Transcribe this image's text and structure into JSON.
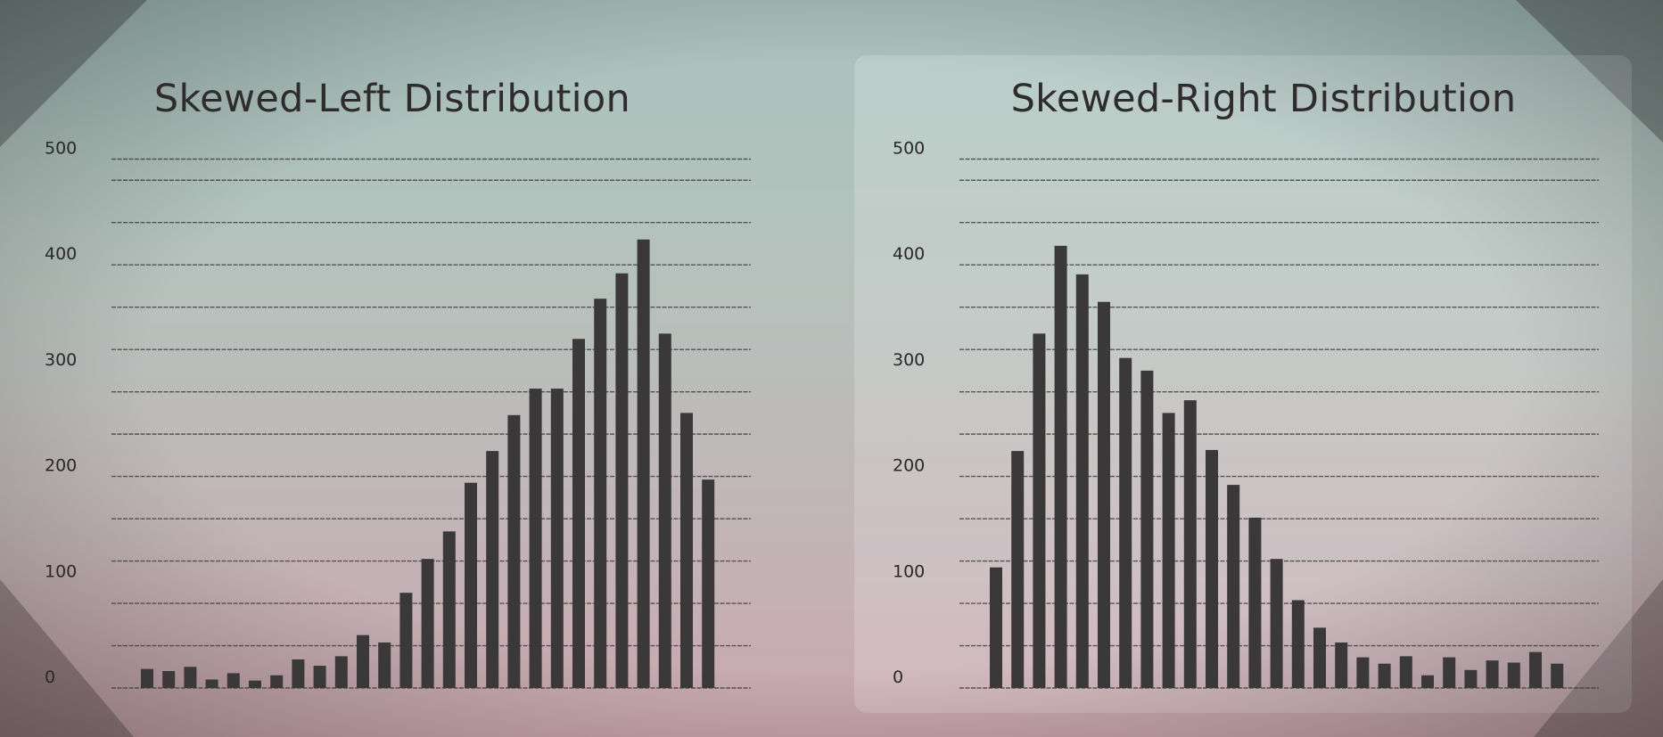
{
  "chart_data": [
    {
      "type": "bar",
      "title": "Skewed-Left Distribution",
      "xlabel": "",
      "ylabel": "",
      "ylim": [
        0,
        510
      ],
      "yticks": [
        0,
        100,
        200,
        300,
        400,
        500
      ],
      "grid": true,
      "values": [
        18,
        16,
        20,
        8,
        14,
        7,
        12,
        27,
        21,
        30,
        50,
        43,
        90,
        122,
        148,
        194,
        224,
        258,
        283,
        283,
        330,
        368,
        392,
        424,
        335,
        260,
        197
      ]
    },
    {
      "type": "bar",
      "title": "Skewed-Right Distribution",
      "xlabel": "",
      "ylabel": "",
      "ylim": [
        0,
        510
      ],
      "yticks": [
        0,
        100,
        200,
        300,
        400,
        500
      ],
      "grid": true,
      "values": [
        114,
        224,
        335,
        418,
        391,
        365,
        312,
        300,
        260,
        272,
        225,
        192,
        161,
        122,
        83,
        57,
        43,
        29,
        23,
        30,
        12,
        29,
        17,
        26,
        24,
        34,
        23
      ]
    }
  ]
}
